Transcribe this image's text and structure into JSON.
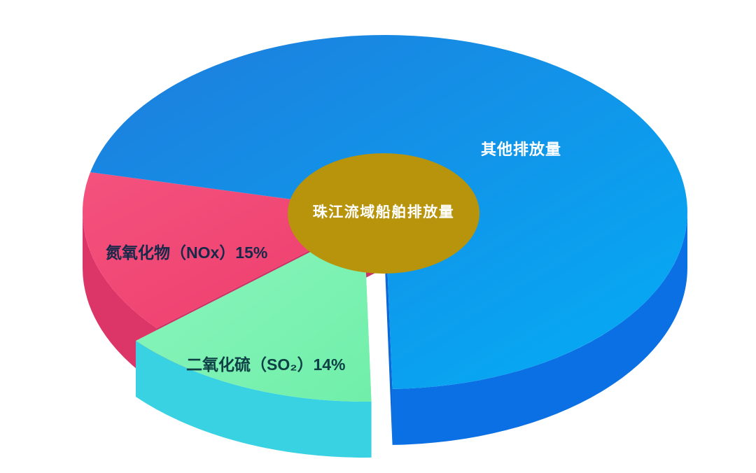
{
  "background": "#ffffff",
  "chart_data": {
    "type": "pie",
    "style": "3d-exploded",
    "title": "珠江流域船舶排放量",
    "center_label": "珠江流域船舶排放量",
    "center_bg": "#B7940C",
    "center_text_color": "#FFFFFF",
    "legend_position": "none",
    "axes": "none",
    "slices": [
      {
        "id": "other",
        "name": "其他排放量",
        "percent": 71,
        "label": "其他排放量",
        "label_color": "#FFFFFF",
        "top": "#1E7CDC",
        "top2": "#04AEF6",
        "side": "#0B70E4",
        "cut": "#0A68D8"
      },
      {
        "id": "nox",
        "name": "氮氧化物（NOx）",
        "percent": 15,
        "label": "氮氧化物（NOx）15%",
        "label_color": "#16294A",
        "top": "#F4527E",
        "top2": "#ED3C6C",
        "side": "#DC3568",
        "cut": "#D03166"
      },
      {
        "id": "so2",
        "name": "二氧化硫（SO₂）",
        "percent": 14,
        "label": "二氧化硫（SO₂）14%",
        "label_color": "#0E4046",
        "top": "#8CF5BE",
        "top2": "#70EFA9",
        "side": "#38D2E2",
        "cut": "#A4D6BA"
      }
    ]
  }
}
